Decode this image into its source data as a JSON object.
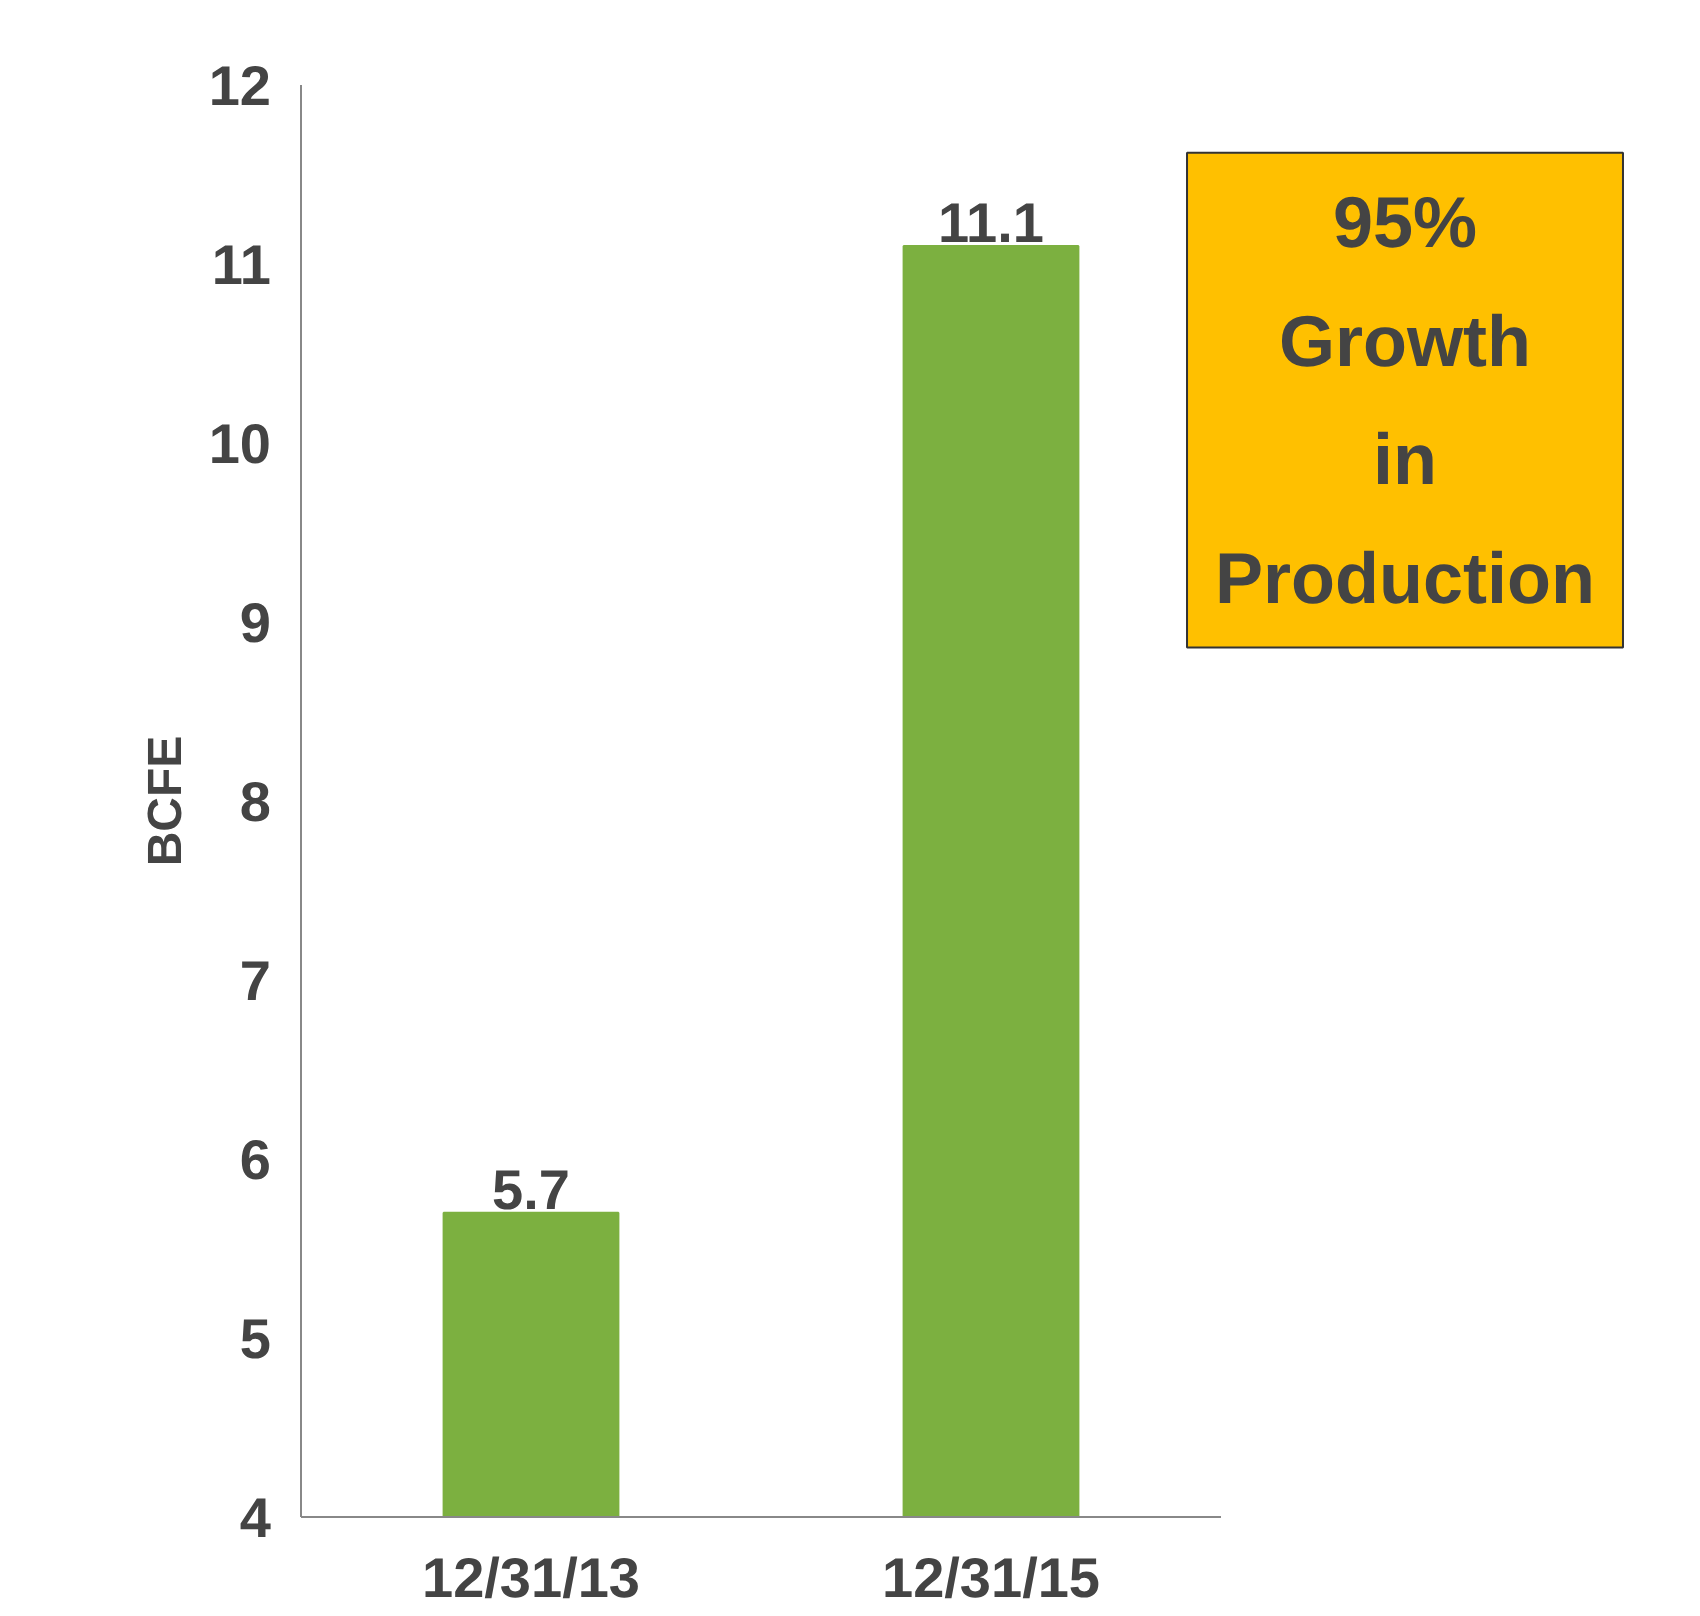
{
  "chart_data": {
    "type": "bar",
    "ylabel": "BCFE",
    "categories": [
      "12/31/13",
      "12/31/15"
    ],
    "values": [
      5.7,
      11.1
    ],
    "color": "#7cb040",
    "ylim": [
      4,
      12
    ],
    "yticks": [
      4,
      5,
      6,
      7,
      8,
      9,
      10,
      11,
      12
    ],
    "data_labels": true,
    "grid": false,
    "annotations": [
      "95%\nGrowth\nin\nProduction"
    ]
  }
}
